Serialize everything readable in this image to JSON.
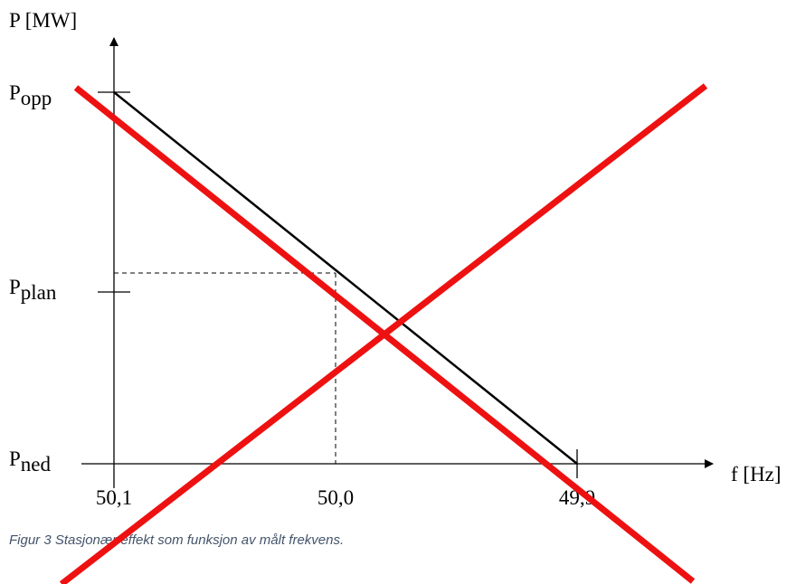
{
  "y_axis": {
    "label": "P [MW]"
  },
  "x_axis": {
    "label": "f [Hz]",
    "ticks": [
      "50,1",
      "50,0",
      "49,9"
    ]
  },
  "power_levels": [
    {
      "symbol": "P",
      "subscript": "opp"
    },
    {
      "symbol": "P",
      "subscript": "plan"
    },
    {
      "symbol": "P",
      "subscript": "ned"
    }
  ],
  "caption": "Figur 3 Stasjonær effekt som funksjon av målt frekvens."
}
